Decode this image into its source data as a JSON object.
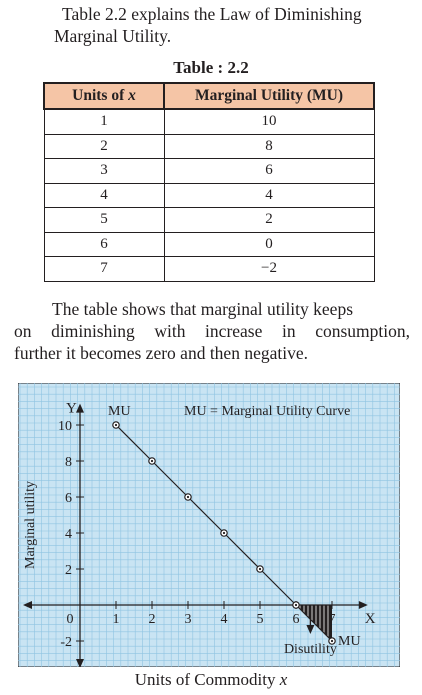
{
  "intro": {
    "line1": "Table 2.2 explains the Law of Diminishing",
    "line2": "Marginal Utility."
  },
  "table": {
    "title": "Table : 2.2",
    "headers": [
      "Units of x",
      "Marginal Utility (MU)"
    ],
    "rows": [
      [
        "1",
        "10"
      ],
      [
        "2",
        "8"
      ],
      [
        "3",
        "6"
      ],
      [
        "4",
        "4"
      ],
      [
        "5",
        "2"
      ],
      [
        "6",
        "0"
      ],
      [
        "7",
        "−2"
      ]
    ]
  },
  "explain": {
    "line1": "The table shows that marginal utility keeps",
    "line2": "on diminishing with increase in consumption,",
    "line3": "further it becomes zero and then negative."
  },
  "chart_data": {
    "type": "line",
    "x": [
      1,
      2,
      3,
      4,
      5,
      6,
      7
    ],
    "y": [
      10,
      8,
      6,
      4,
      2,
      0,
      -2
    ],
    "xlabel": "Units of Commodity x",
    "ylabel": "Marginal utility",
    "x_axis_letter": "X",
    "y_axis_letter": "Y",
    "x_ticks": [
      "0",
      "1",
      "2",
      "3",
      "4",
      "5",
      "6",
      "7"
    ],
    "y_ticks": [
      "10",
      "8",
      "6",
      "4",
      "2",
      "-2"
    ],
    "xlim": [
      0,
      7.8
    ],
    "ylim": [
      -3,
      10.8
    ],
    "grid": true,
    "legend": "MU = Marginal Utility Curve",
    "curve_label_start": "MU",
    "curve_label_end": "MU",
    "shaded_region_label": "Disutility",
    "colors": {
      "grid_bg": "#c9e4f3",
      "grid_line": "#8fc4e2",
      "line": "#231f20"
    }
  }
}
